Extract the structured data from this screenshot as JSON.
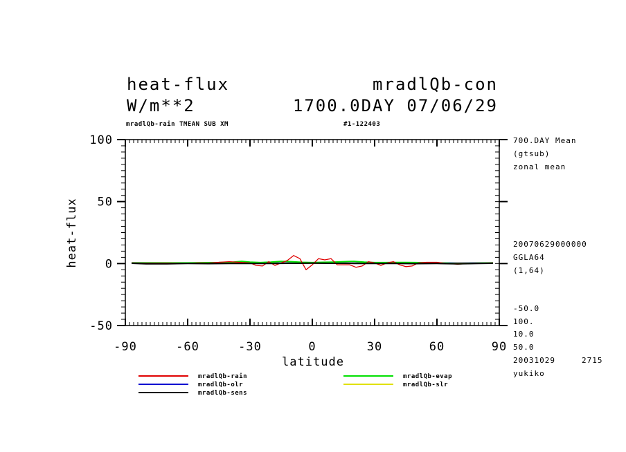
{
  "header": {
    "title_left": "heat-flux",
    "title_right": "mradlQb-con",
    "unit": "W/m**2",
    "datetime": "1700.0DAY 07/06/29",
    "subtitle_left": "mradlQb-rain TMEAN SUB XM",
    "subtitle_right": "#1-122403"
  },
  "side_info": {
    "line1": "700.DAY Mean",
    "line2": "(gtsub)",
    "line3": "zonal mean",
    "line4": "20070629000000",
    "line5": "GGLA64",
    "line6": "(1,64)",
    "line7": "-50.0",
    "line8": "100.",
    "line9": "10.0",
    "line10": "50.0",
    "line11": "20031029",
    "line12": "2715",
    "line13": "yukiko"
  },
  "colors": {
    "rain": "#e00000",
    "evap": "#00e000",
    "olr": "#0000d0",
    "slr": "#e0e000",
    "sens": "#000000"
  },
  "chart_data": {
    "type": "line",
    "xlabel": "latitude",
    "ylabel": "heat-flux",
    "xlim": [
      -90,
      90
    ],
    "ylim": [
      -50,
      100
    ],
    "xticks": [
      -90,
      -60,
      -30,
      0,
      30,
      60,
      90
    ],
    "yticks": [
      -50,
      0,
      50,
      100
    ],
    "xtick_labels": [
      "-90",
      "-60",
      "-30",
      "0",
      "30",
      "60",
      "90"
    ],
    "ytick_labels": [
      "-50",
      "0",
      "50",
      "100"
    ],
    "legend_position": "bottom",
    "series": [
      {
        "name": "mradlQb-rain",
        "color_key": "rain",
        "x": [
          -87,
          -80,
          -70,
          -60,
          -55,
          -50,
          -45,
          -40,
          -35,
          -30,
          -27,
          -24,
          -21,
          -18,
          -15,
          -12,
          -9,
          -6,
          -3,
          0,
          3,
          6,
          9,
          12,
          15,
          18,
          21,
          24,
          27,
          30,
          33,
          36,
          39,
          42,
          45,
          48,
          51,
          55,
          60,
          65,
          70,
          75,
          80,
          87
        ],
        "y": [
          0.5,
          0.3,
          0.4,
          0.2,
          0.5,
          0.4,
          1.0,
          1.5,
          1.0,
          0.5,
          -1.5,
          -2.0,
          1.5,
          -1.5,
          0.5,
          2.5,
          6.5,
          4.0,
          -5.0,
          -1.0,
          4.0,
          3.0,
          4.0,
          -1.0,
          -1.0,
          -1.0,
          -3.0,
          -2.0,
          1.5,
          0.5,
          -1.5,
          0.5,
          1.5,
          -1.0,
          -2.5,
          -2.0,
          0.5,
          1.0,
          1.0,
          0.0,
          -0.5,
          0.0,
          0.3,
          0.5
        ]
      },
      {
        "name": "mradlQb-evap",
        "color_key": "evap",
        "x": [
          -87,
          -75,
          -60,
          -45,
          -38,
          -34,
          -30,
          -25,
          -20,
          -15,
          -10,
          -5,
          0,
          5,
          10,
          15,
          20,
          25,
          30,
          35,
          40,
          45,
          50,
          55,
          60,
          65,
          70,
          80,
          87
        ],
        "y": [
          0.5,
          0.5,
          0.5,
          0.8,
          1.2,
          1.8,
          1.2,
          0.8,
          1.2,
          1.8,
          1.5,
          1.0,
          0.8,
          1.0,
          1.2,
          1.5,
          1.8,
          1.2,
          0.8,
          0.8,
          0.9,
          0.9,
          0.8,
          0.6,
          0.5,
          0.3,
          -0.2,
          0.3,
          0.5
        ]
      },
      {
        "name": "mradlQb-olr",
        "color_key": "olr",
        "x": [
          -87,
          -60,
          -30,
          0,
          30,
          60,
          87
        ],
        "y": [
          0.5,
          0.4,
          0.4,
          0.4,
          0.4,
          0.4,
          0.5
        ]
      },
      {
        "name": "mradlQb-slr",
        "color_key": "slr",
        "x": [
          -87,
          -60,
          -45,
          -30,
          0,
          30,
          45,
          60,
          87
        ],
        "y": [
          0.3,
          0.2,
          0.4,
          0.2,
          0.3,
          0.2,
          0.4,
          0.2,
          0.3
        ]
      },
      {
        "name": "mradlQb-sens",
        "color_key": "sens",
        "x": [
          -87,
          -80,
          -70,
          -60,
          -50,
          -40,
          -30,
          -20,
          -10,
          0,
          10,
          20,
          30,
          40,
          50,
          60,
          70,
          80,
          87
        ],
        "y": [
          0.2,
          -0.2,
          -0.2,
          0.0,
          -0.1,
          0.1,
          0.0,
          0.1,
          0.2,
          0.3,
          0.2,
          0.1,
          0.0,
          0.1,
          -0.1,
          0.0,
          -0.2,
          0.0,
          0.2
        ]
      }
    ]
  }
}
